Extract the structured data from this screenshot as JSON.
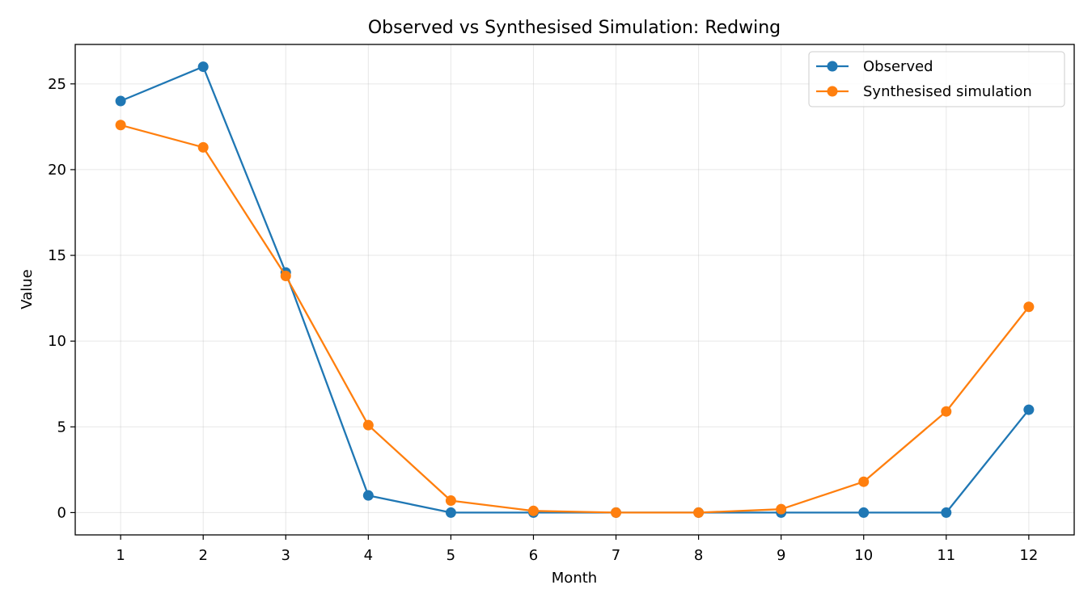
{
  "chart_data": {
    "type": "line",
    "title": "Observed vs Synthesised Simulation: Redwing",
    "xlabel": "Month",
    "ylabel": "Value",
    "x": [
      1,
      2,
      3,
      4,
      5,
      6,
      7,
      8,
      9,
      10,
      11,
      12
    ],
    "xlim": [
      0.45,
      12.55
    ],
    "ylim": [
      -1.3,
      27.3
    ],
    "yticks": [
      0,
      5,
      10,
      15,
      20,
      25
    ],
    "grid": true,
    "legend_position": "top-right",
    "series": [
      {
        "name": "Observed",
        "color": "#1f77b4",
        "marker": "circle",
        "values": [
          24,
          26,
          14,
          1,
          0,
          0,
          0,
          0,
          0,
          0,
          0,
          6
        ]
      },
      {
        "name": "Synthesised simulation",
        "color": "#ff7f0e",
        "marker": "circle",
        "values": [
          22.6,
          21.3,
          13.8,
          5.1,
          0.7,
          0.1,
          0.0,
          0.0,
          0.2,
          1.8,
          5.9,
          12.0
        ]
      }
    ]
  }
}
